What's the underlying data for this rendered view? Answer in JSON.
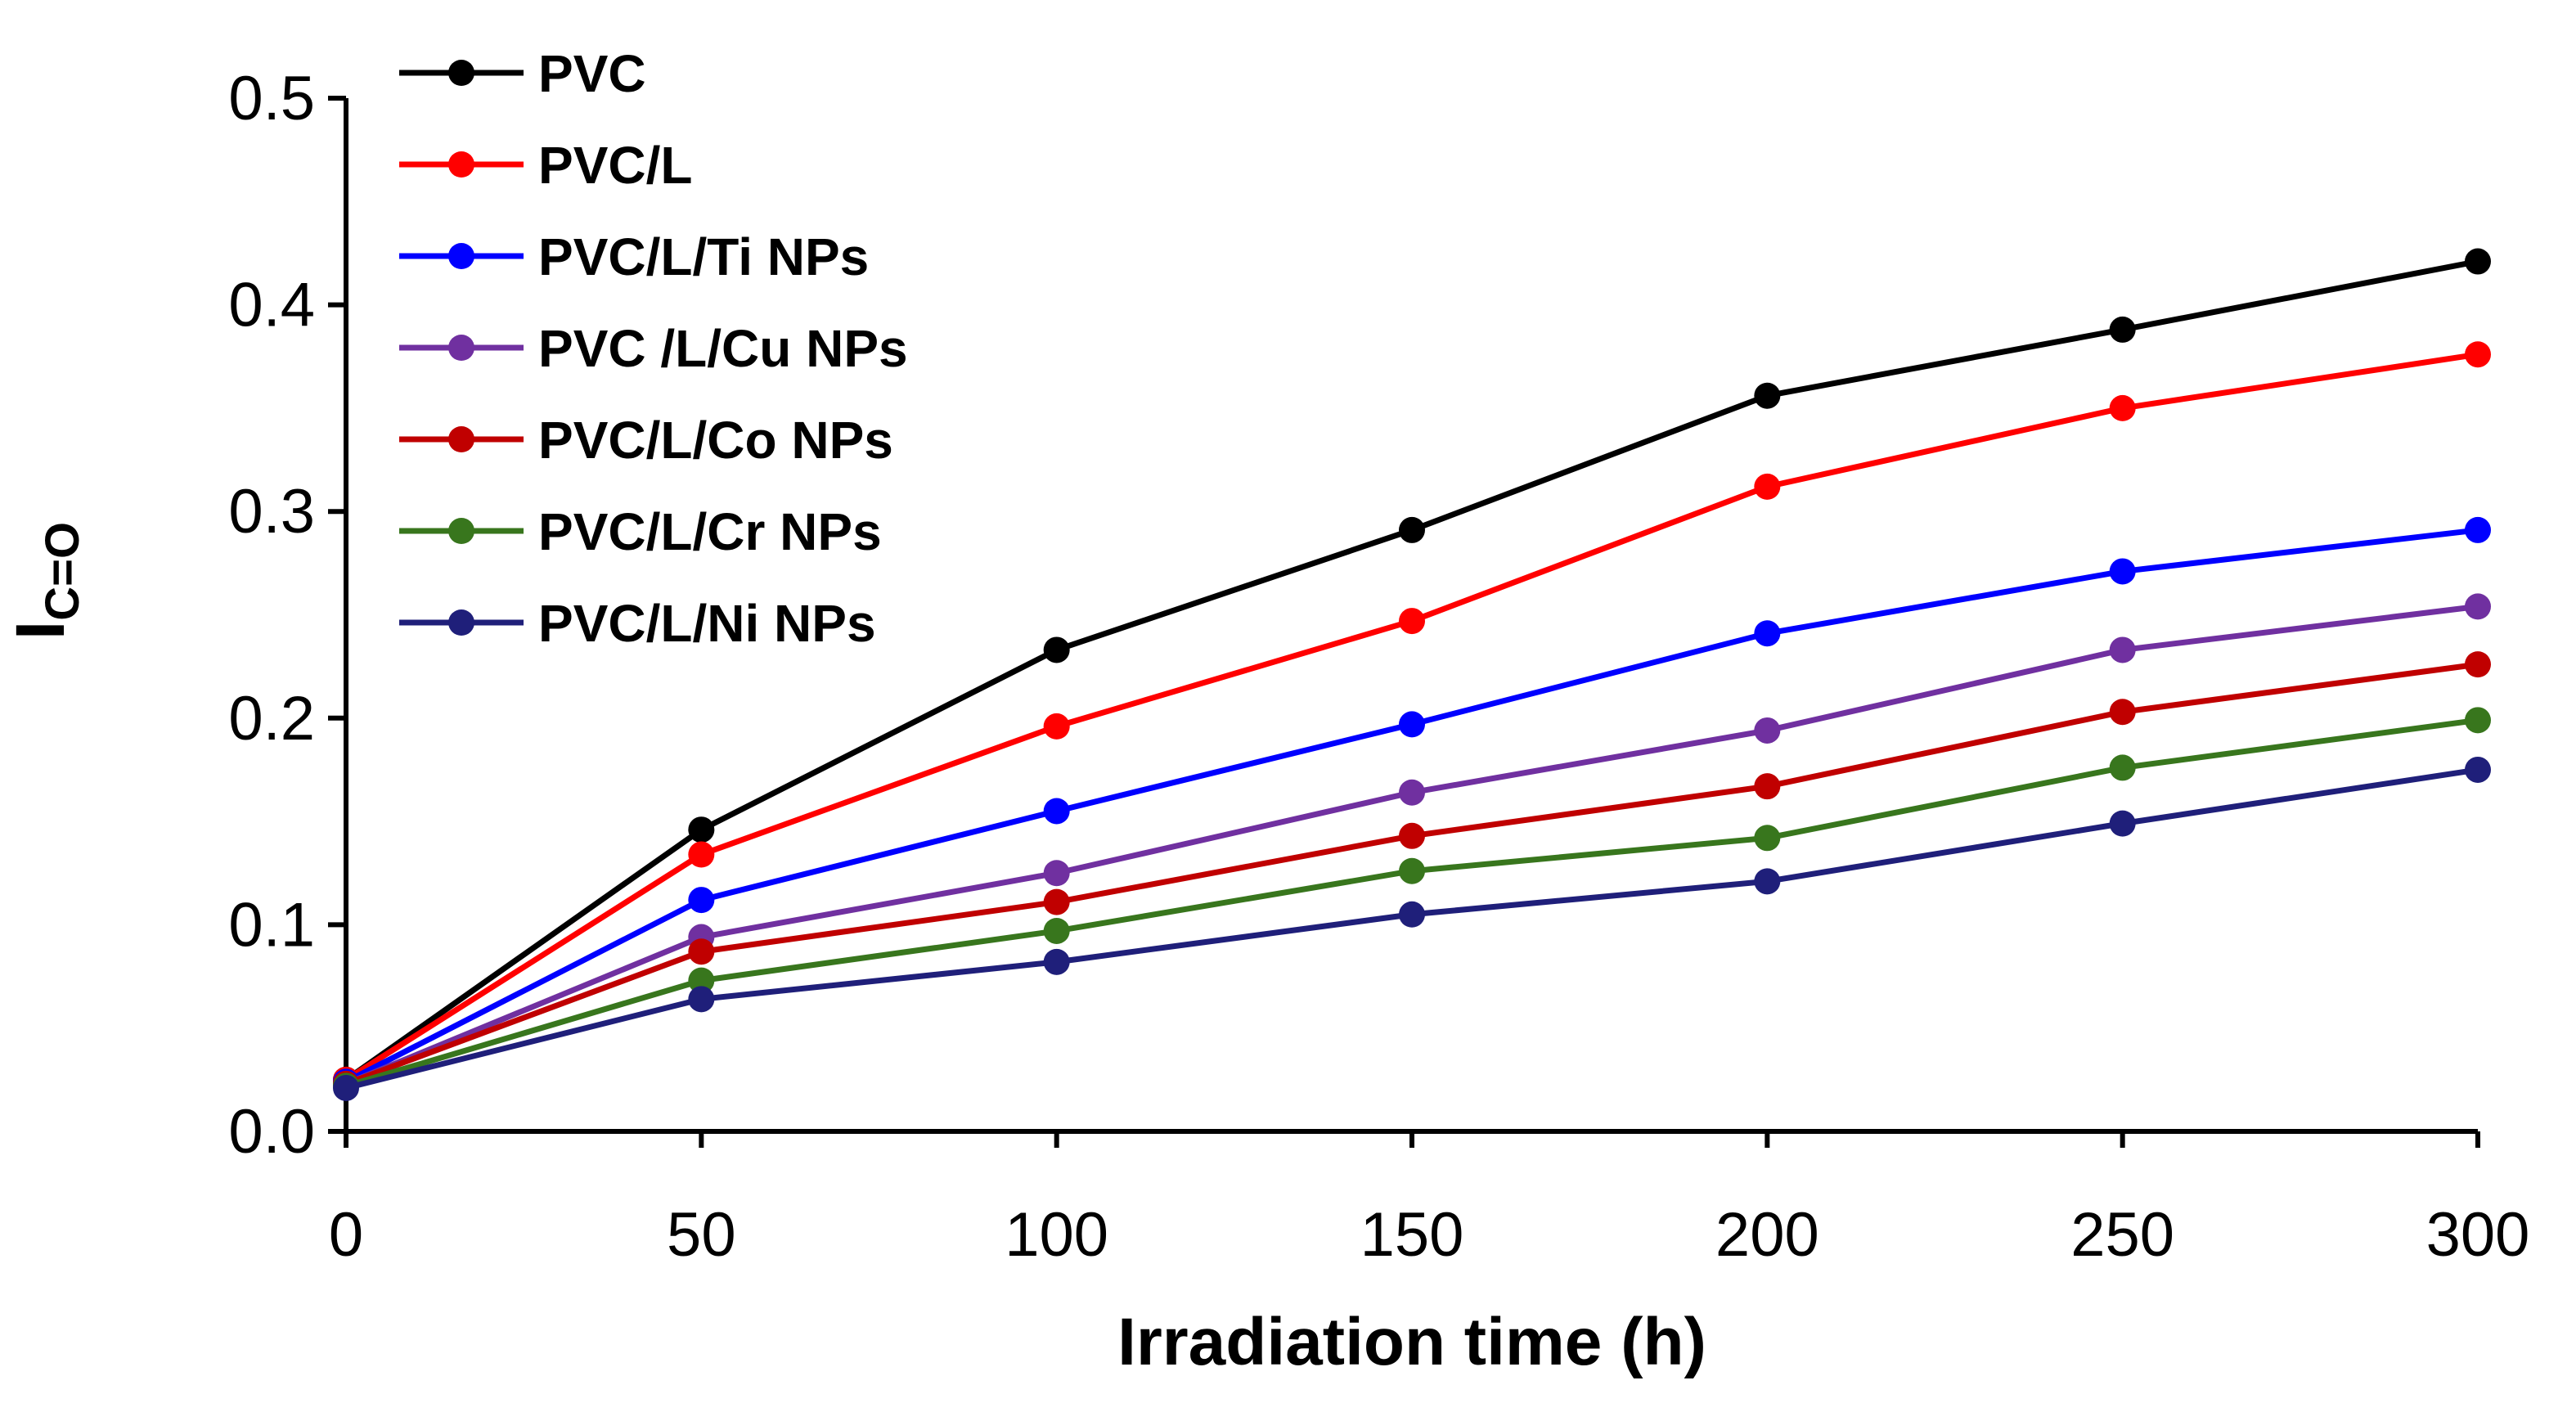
{
  "chart_data": {
    "type": "line",
    "xlabel": "Irradiation time (h)",
    "ylabel_main": "I",
    "ylabel_sub": "C=O",
    "xlim": [
      0,
      300
    ],
    "ylim": [
      0,
      0.5
    ],
    "x_ticks": [
      "0",
      "50",
      "100",
      "150",
      "200",
      "250",
      "300"
    ],
    "y_ticks": [
      "0.0",
      "0.1",
      "0.2",
      "0.3",
      "0.4",
      "0.5"
    ],
    "x": [
      0,
      50,
      100,
      150,
      200,
      250,
      300
    ],
    "grid": false,
    "legend_position": "top-left",
    "series": [
      {
        "name": "PVC",
        "color": "#000000",
        "values": [
          0.025,
          0.146,
          0.233,
          0.291,
          0.356,
          0.388,
          0.421
        ]
      },
      {
        "name": "PVC/L",
        "color": "#ff0000",
        "values": [
          0.025,
          0.134,
          0.196,
          0.247,
          0.312,
          0.35,
          0.376
        ]
      },
      {
        "name": "PVC/L/Ti NPs",
        "color": "#0000ff",
        "values": [
          0.024,
          0.112,
          0.155,
          0.197,
          0.241,
          0.271,
          0.291
        ]
      },
      {
        "name": "PVC /L/Cu NPs",
        "color": "#7030a0",
        "values": [
          0.023,
          0.094,
          0.125,
          0.164,
          0.194,
          0.233,
          0.254
        ]
      },
      {
        "name": "PVC/L/Co NPs",
        "color": "#c00000",
        "values": [
          0.023,
          0.087,
          0.111,
          0.143,
          0.167,
          0.203,
          0.226
        ]
      },
      {
        "name": "PVC/L/Cr NPs",
        "color": "#38761d",
        "values": [
          0.022,
          0.073,
          0.097,
          0.126,
          0.142,
          0.176,
          0.199
        ]
      },
      {
        "name": "PVC/L/Ni NPs",
        "color": "#1f1f7a",
        "values": [
          0.021,
          0.064,
          0.082,
          0.105,
          0.121,
          0.149,
          0.175
        ]
      }
    ]
  }
}
